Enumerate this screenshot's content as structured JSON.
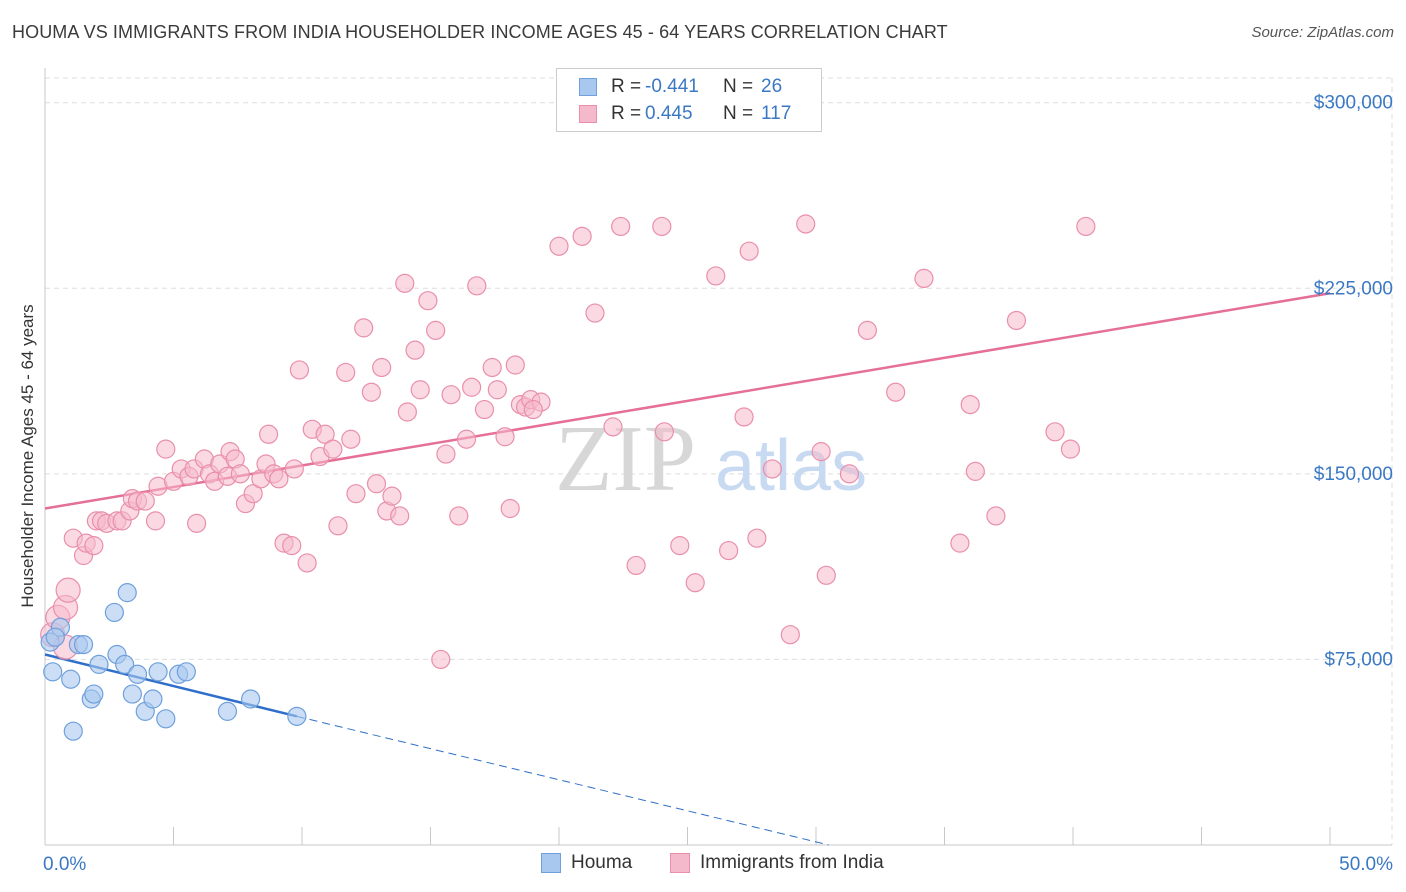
{
  "title": "HOUMA VS IMMIGRANTS FROM INDIA HOUSEHOLDER INCOME AGES 45 - 64 YEARS CORRELATION CHART",
  "source": "Source: ZipAtlas.com",
  "watermark": {
    "zip": "ZIP",
    "atlas": "atlas"
  },
  "legend": {
    "rows": [
      {
        "r_label": "R =",
        "r_value": "-0.441",
        "n_label": "N =",
        "n_value": "26"
      },
      {
        "r_label": "R =",
        "r_value": "0.445",
        "n_label": "N =",
        "n_value": "117"
      }
    ]
  },
  "bottom_legend": {
    "series_a": "Houma",
    "series_b": "Immigrants from India"
  },
  "colors": {
    "houma_fill": "#a9c8ef",
    "houma_stroke": "#6fa0dc",
    "houma_line": "#2f6fc9",
    "india_fill": "#f5b9cc",
    "india_stroke": "#e98fac",
    "india_line": "#e56f96",
    "grid": "#dddddd",
    "axis_text": "#3b78c4"
  },
  "chart_data": {
    "type": "scatter",
    "xlabel": "",
    "ylabel": "Householder Income Ages 45 - 64 years",
    "xlim": [
      0,
      50
    ],
    "ylim": [
      0,
      310000
    ],
    "x_tick_labels": [
      "0.0%",
      "50.0%"
    ],
    "y_ticks": [
      75000,
      150000,
      225000,
      300000
    ],
    "y_tick_labels": [
      "$75,000",
      "$150,000",
      "$225,000",
      "$300,000"
    ],
    "grid": true,
    "legend_position": "top-center",
    "series": [
      {
        "name": "Houma",
        "r": -0.441,
        "n": 26,
        "trend": {
          "x0": 0,
          "y0": 77000,
          "x1": 9.8,
          "y1": 52000,
          "dash_to_x": 30.5,
          "dash_to_y": 0
        },
        "points": [
          [
            0.2,
            82000
          ],
          [
            0.3,
            70000
          ],
          [
            0.6,
            88000
          ],
          [
            1.0,
            67000
          ],
          [
            1.1,
            46000
          ],
          [
            1.3,
            81000
          ],
          [
            1.5,
            81000
          ],
          [
            1.8,
            59000
          ],
          [
            1.9,
            61000
          ],
          [
            2.1,
            73000
          ],
          [
            2.7,
            94000
          ],
          [
            2.8,
            77000
          ],
          [
            3.1,
            73000
          ],
          [
            3.2,
            102000
          ],
          [
            3.4,
            61000
          ],
          [
            3.6,
            69000
          ],
          [
            3.9,
            54000
          ],
          [
            4.2,
            59000
          ],
          [
            4.4,
            70000
          ],
          [
            4.7,
            51000
          ],
          [
            5.2,
            69000
          ],
          [
            5.5,
            70000
          ],
          [
            7.1,
            54000
          ],
          [
            8.0,
            59000
          ],
          [
            9.8,
            52000
          ],
          [
            0.4,
            84000
          ]
        ]
      },
      {
        "name": "Immigrants from India",
        "r": 0.445,
        "n": 117,
        "trend": {
          "x0": 0,
          "y0": 136000,
          "x1": 50,
          "y1": 223000
        },
        "points": [
          [
            0.3,
            85000
          ],
          [
            0.5,
            92000
          ],
          [
            0.8,
            80000
          ],
          [
            0.8,
            96000
          ],
          [
            0.9,
            103000
          ],
          [
            1.1,
            124000
          ],
          [
            1.5,
            117000
          ],
          [
            1.6,
            122000
          ],
          [
            1.9,
            121000
          ],
          [
            2.0,
            131000
          ],
          [
            2.2,
            131000
          ],
          [
            2.4,
            130000
          ],
          [
            2.8,
            131000
          ],
          [
            3.0,
            131000
          ],
          [
            3.3,
            135000
          ],
          [
            3.4,
            140000
          ],
          [
            3.6,
            139000
          ],
          [
            3.9,
            139000
          ],
          [
            4.3,
            131000
          ],
          [
            4.4,
            145000
          ],
          [
            4.7,
            160000
          ],
          [
            5.0,
            147000
          ],
          [
            5.3,
            152000
          ],
          [
            5.6,
            149000
          ],
          [
            5.8,
            152000
          ],
          [
            5.9,
            130000
          ],
          [
            6.2,
            156000
          ],
          [
            6.4,
            150000
          ],
          [
            6.6,
            147000
          ],
          [
            6.8,
            154000
          ],
          [
            7.1,
            149000
          ],
          [
            7.2,
            159000
          ],
          [
            7.4,
            156000
          ],
          [
            7.6,
            150000
          ],
          [
            7.8,
            138000
          ],
          [
            8.1,
            142000
          ],
          [
            8.4,
            148000
          ],
          [
            8.6,
            154000
          ],
          [
            8.7,
            166000
          ],
          [
            8.9,
            150000
          ],
          [
            9.1,
            148000
          ],
          [
            9.3,
            122000
          ],
          [
            9.6,
            121000
          ],
          [
            9.7,
            152000
          ],
          [
            9.9,
            192000
          ],
          [
            10.2,
            114000
          ],
          [
            10.4,
            168000
          ],
          [
            10.7,
            157000
          ],
          [
            10.9,
            166000
          ],
          [
            11.2,
            160000
          ],
          [
            11.4,
            129000
          ],
          [
            11.7,
            191000
          ],
          [
            11.9,
            164000
          ],
          [
            12.1,
            142000
          ],
          [
            12.4,
            209000
          ],
          [
            12.7,
            183000
          ],
          [
            12.9,
            146000
          ],
          [
            13.1,
            193000
          ],
          [
            13.3,
            135000
          ],
          [
            13.5,
            141000
          ],
          [
            13.8,
            133000
          ],
          [
            14.0,
            227000
          ],
          [
            14.1,
            175000
          ],
          [
            14.4,
            200000
          ],
          [
            14.6,
            184000
          ],
          [
            14.9,
            220000
          ],
          [
            15.2,
            208000
          ],
          [
            15.4,
            75000
          ],
          [
            15.6,
            158000
          ],
          [
            15.8,
            182000
          ],
          [
            16.1,
            133000
          ],
          [
            16.4,
            164000
          ],
          [
            16.6,
            185000
          ],
          [
            16.8,
            226000
          ],
          [
            17.1,
            176000
          ],
          [
            17.4,
            193000
          ],
          [
            17.6,
            184000
          ],
          [
            17.9,
            165000
          ],
          [
            18.1,
            136000
          ],
          [
            18.3,
            194000
          ],
          [
            18.5,
            178000
          ],
          [
            18.7,
            177000
          ],
          [
            18.9,
            180000
          ],
          [
            19.3,
            179000
          ],
          [
            19.0,
            176000
          ],
          [
            20.0,
            242000
          ],
          [
            20.9,
            246000
          ],
          [
            21.4,
            215000
          ],
          [
            22.4,
            250000
          ],
          [
            22.1,
            169000
          ],
          [
            23.0,
            113000
          ],
          [
            24.1,
            167000
          ],
          [
            24.0,
            250000
          ],
          [
            24.7,
            121000
          ],
          [
            25.3,
            106000
          ],
          [
            26.1,
            230000
          ],
          [
            26.6,
            119000
          ],
          [
            27.2,
            173000
          ],
          [
            27.4,
            240000
          ],
          [
            27.7,
            124000
          ],
          [
            28.3,
            152000
          ],
          [
            29.0,
            85000
          ],
          [
            29.6,
            251000
          ],
          [
            30.2,
            159000
          ],
          [
            30.4,
            109000
          ],
          [
            31.3,
            150000
          ],
          [
            32.0,
            208000
          ],
          [
            33.1,
            183000
          ],
          [
            34.2,
            229000
          ],
          [
            35.6,
            122000
          ],
          [
            36.0,
            178000
          ],
          [
            36.2,
            151000
          ],
          [
            37.0,
            133000
          ],
          [
            37.8,
            212000
          ],
          [
            39.3,
            167000
          ],
          [
            39.9,
            160000
          ],
          [
            40.5,
            250000
          ]
        ]
      }
    ]
  }
}
